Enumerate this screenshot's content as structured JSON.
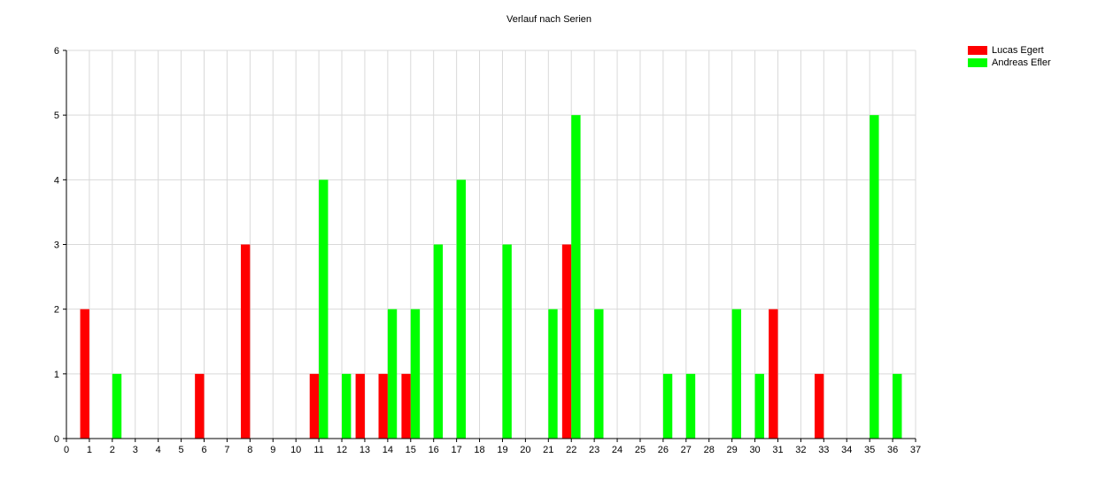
{
  "chart_data": {
    "type": "bar",
    "title": "Verlauf nach Serien",
    "xlabel": "",
    "ylabel": "",
    "xlim": [
      0,
      37
    ],
    "ylim": [
      0,
      6
    ],
    "x_ticks": [
      0,
      1,
      2,
      3,
      4,
      5,
      6,
      7,
      8,
      9,
      10,
      11,
      12,
      13,
      14,
      15,
      16,
      17,
      18,
      19,
      20,
      21,
      22,
      23,
      24,
      25,
      26,
      27,
      28,
      29,
      30,
      31,
      32,
      33,
      34,
      35,
      36,
      37
    ],
    "y_ticks": [
      0,
      1,
      2,
      3,
      4,
      5,
      6
    ],
    "grid": true,
    "legend_position": "top-right",
    "series": [
      {
        "name": "Lucas Egert",
        "color": "#ff0000",
        "points": [
          [
            0.8,
            2
          ],
          [
            5.8,
            1
          ],
          [
            7.8,
            3
          ],
          [
            10.8,
            1
          ],
          [
            12.8,
            1
          ],
          [
            13.8,
            1
          ],
          [
            14.8,
            1
          ],
          [
            21.8,
            3
          ],
          [
            30.8,
            2
          ],
          [
            32.8,
            1
          ]
        ]
      },
      {
        "name": "Andreas Efler",
        "color": "#00ff00",
        "points": [
          [
            2.2,
            1
          ],
          [
            11.2,
            4
          ],
          [
            12.2,
            1
          ],
          [
            14.2,
            2
          ],
          [
            15.2,
            2
          ],
          [
            16.2,
            3
          ],
          [
            17.2,
            4
          ],
          [
            19.2,
            3
          ],
          [
            21.2,
            2
          ],
          [
            22.2,
            5
          ],
          [
            23.2,
            2
          ],
          [
            26.2,
            1
          ],
          [
            27.2,
            1
          ],
          [
            29.2,
            2
          ],
          [
            30.2,
            1
          ],
          [
            35.2,
            5
          ],
          [
            36.2,
            1
          ]
        ]
      }
    ]
  }
}
